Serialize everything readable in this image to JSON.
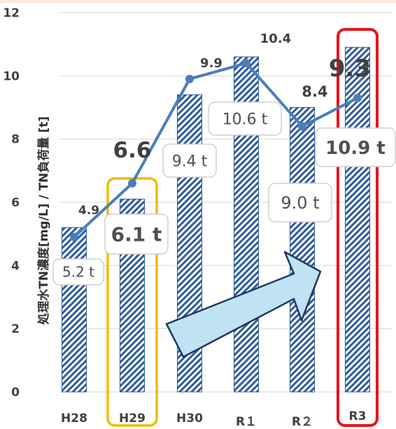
{
  "chart_data": {
    "type": "bar",
    "categories": [
      "H28",
      "H29",
      "H30",
      "R１",
      "R２",
      "R3"
    ],
    "ylabel": "処理水TN濃度[mg/L] / TN負荷量 [t]",
    "ylim": [
      0,
      12
    ],
    "yticks": [
      "0",
      "2",
      "4",
      "6",
      "8",
      "10",
      "12"
    ],
    "grid": true,
    "series": [
      {
        "type": "bar",
        "values": [
          5.2,
          6.1,
          9.4,
          10.6,
          9.0,
          10.9
        ],
        "labels": [
          "5.2 t",
          "6.1 t",
          "9.4 t",
          "10.6 t",
          "9.0 t",
          "10.9 t"
        ]
      },
      {
        "type": "line",
        "values": [
          4.9,
          6.6,
          9.9,
          10.4,
          8.4,
          9.3
        ],
        "labels": [
          "4.9",
          "6.6",
          "9.9",
          "10.4",
          "8.4",
          "9.3"
        ]
      }
    ],
    "highlights": [
      {
        "category": "H29",
        "color": "#f5b800"
      },
      {
        "category": "R3",
        "color": "#e8141c"
      }
    ],
    "annotation": "upward arrow",
    "colors": {
      "bar_hatch": "#2e5b9a",
      "line": "#4a7ebb",
      "arrow_fill": "#bfe3f2",
      "arrow_stroke": "#1f3864",
      "grid": "#d9d9d9"
    }
  }
}
